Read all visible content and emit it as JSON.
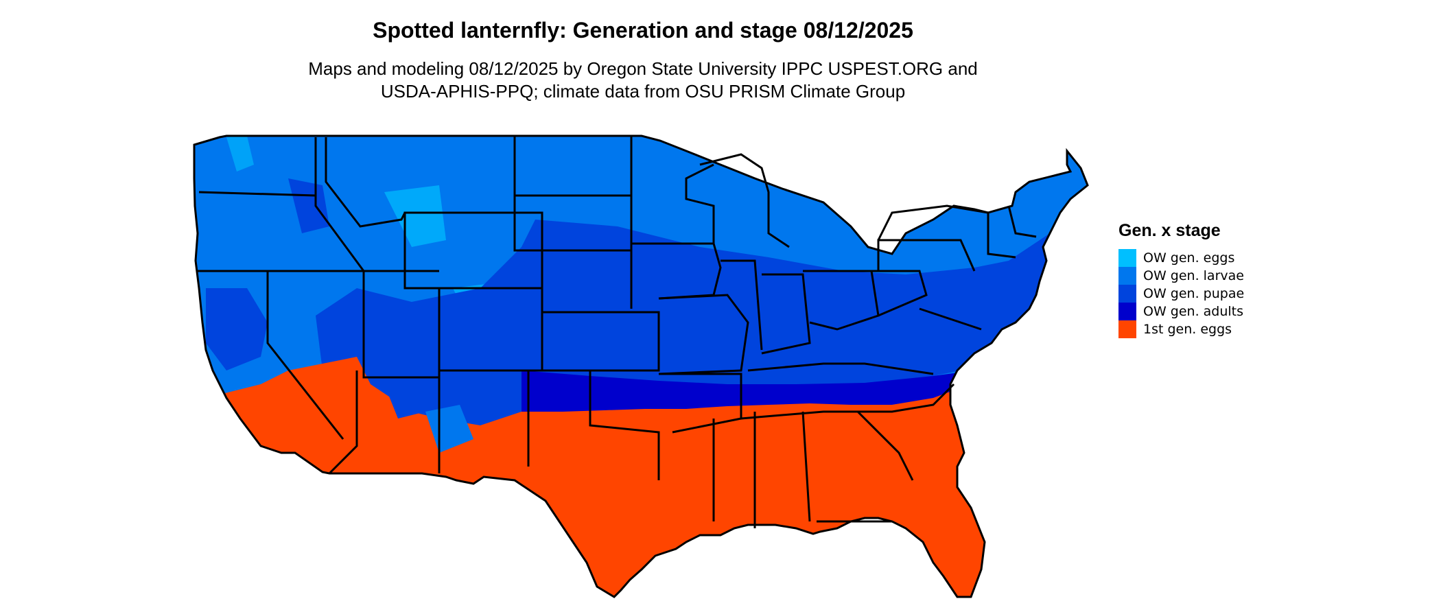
{
  "title": "Spotted lanternfly: Generation and stage 08/12/2025",
  "subtitle_lines": [
    "Maps and modeling 08/12/2025 by Oregon State University IPPC USPEST.ORG and",
    "USDA-APHIS-PPQ; climate data from OSU PRISM Climate Group"
  ],
  "legend": {
    "title": "Gen. x stage",
    "items": [
      {
        "label": "OW gen. eggs",
        "color": "#00BFFF"
      },
      {
        "label": "OW gen. larvae",
        "color": "#0077EE"
      },
      {
        "label": "OW gen. pupae",
        "color": "#0044DD"
      },
      {
        "label": "OW gen. adults",
        "color": "#0000CC"
      },
      {
        "label": "1st gen. eggs",
        "color": "#FF4500"
      }
    ]
  },
  "colors": {
    "border": "#000000",
    "background": "#FFFFFF"
  }
}
